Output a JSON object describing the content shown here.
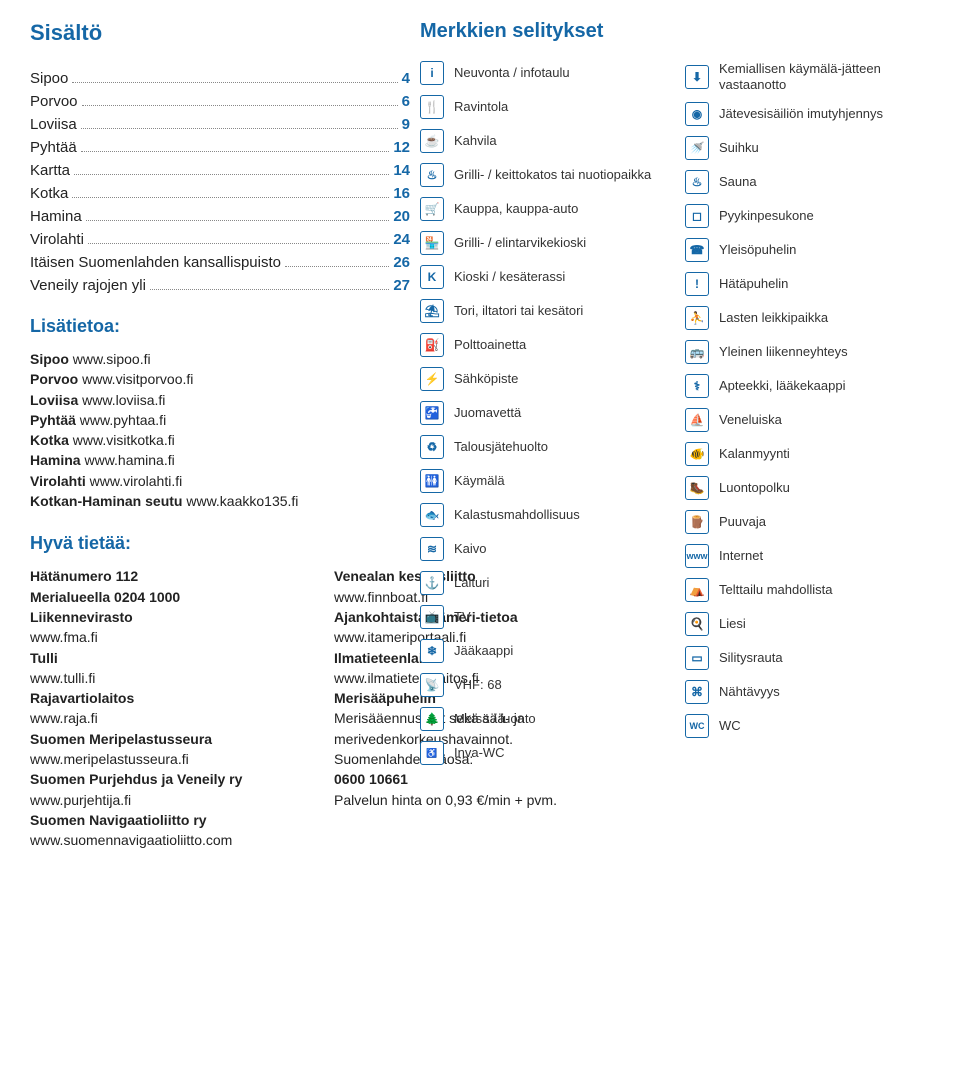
{
  "title": "Sisältö",
  "toc": [
    {
      "label": "Sipoo",
      "page": "4"
    },
    {
      "label": "Porvoo",
      "page": "6"
    },
    {
      "label": "Loviisa",
      "page": "9"
    },
    {
      "label": "Pyhtää",
      "page": "12"
    },
    {
      "label": "Kartta",
      "page": "14"
    },
    {
      "label": "Kotka",
      "page": "16"
    },
    {
      "label": "Hamina",
      "page": "20"
    },
    {
      "label": "Virolahti",
      "page": "24"
    },
    {
      "label": "Itäisen Suomenlahden kansallispuisto",
      "page": "26"
    },
    {
      "label": "Veneily rajojen yli",
      "page": "27"
    }
  ],
  "moreinfo_h": "Lisätietoa:",
  "moreinfo": [
    {
      "b": "Sipoo",
      "t": " www.sipoo.fi"
    },
    {
      "b": "Porvoo",
      "t": " www.visitporvoo.fi"
    },
    {
      "b": "Loviisa",
      "t": " www.loviisa.fi"
    },
    {
      "b": "Pyhtää",
      "t": " www.pyhtaa.fi"
    },
    {
      "b": "Kotka",
      "t": " www.visitkotka.fi"
    },
    {
      "b": "Hamina",
      "t": " www.hamina.fi"
    },
    {
      "b": "Virolahti",
      "t": " www.virolahti.fi"
    },
    {
      "b": "Kotkan-Haminan seutu",
      "t": " www.kaakko135.fi"
    }
  ],
  "good_h": "Hyvä tietää:",
  "good_left": "Hätänumero 112\nMerialueella 0204 1000\nLiikennevirasto\nwww.fma.fi\nTulli\nwww.tulli.fi\nRajavartiolaitos\nwww.raja.fi\nSuomen Meripelastusseura\nwww.meripelastusseura.fi\nSuomen Purjehdus ja Veneily ry\nwww.purjehtija.fi\nSuomen Navigaatioliitto ry\nwww.suomennavigaatioliitto.com",
  "good_right": "Venealan keskusliitto\nwww.finnboat.fi\nAjankohtaista Itämeri-tietoa\nwww.itameriportaali.fi\nIlmatieteenlaitos\nwww.ilmatieteenlaitos.fi\nMerisääpuhelin\nMerisääennusteet sekä sää- ja merivedenkorkeushavainnot.\nSuomenlahden itäosa:\n0600 10661\nPalvelun hinta on 0,93 €/min + pvm.",
  "good_left_bold": [
    "Hätänumero 112",
    "Merialueella 0204 1000",
    "Liikennevirasto",
    "Tulli",
    "Rajavartiolaitos",
    "Suomen Meripelastusseura",
    "Suomen Purjehdus ja Veneily ry",
    "Suomen Navigaatioliitto ry"
  ],
  "good_right_bold": [
    "Venealan keskusliitto",
    "Ajankohtaista Itämeri-tietoa",
    "Ilmatieteenlaitos",
    "Merisääpuhelin",
    "0600 10661"
  ],
  "legend_title": "Merkkien selitykset",
  "legend_left": [
    {
      "glyph": "i",
      "label": "Neuvonta / infotaulu"
    },
    {
      "glyph": "🍴",
      "label": "Ravintola"
    },
    {
      "glyph": "☕",
      "label": "Kahvila"
    },
    {
      "glyph": "♨",
      "label": "Grilli- / keittokatos tai nuotiopaikka"
    },
    {
      "glyph": "🛒",
      "label": "Kauppa, kauppa-auto"
    },
    {
      "glyph": "🏪",
      "label": "Grilli- / elintarvikekioski"
    },
    {
      "glyph": "K",
      "label": "Kioski / kesäterassi"
    },
    {
      "glyph": "⛱",
      "label": "Tori, iltatori tai kesätori"
    },
    {
      "glyph": "⛽",
      "label": "Polttoainetta"
    },
    {
      "glyph": "⚡",
      "label": "Sähköpiste"
    },
    {
      "glyph": "🚰",
      "label": "Juomavettä"
    },
    {
      "glyph": "♻",
      "label": "Talousjätehuolto"
    },
    {
      "glyph": "🚻",
      "label": "Käymälä"
    },
    {
      "glyph": "🐟",
      "label": "Kalastusmahdollisuus"
    },
    {
      "glyph": "≋",
      "label": "Kaivo"
    },
    {
      "glyph": "⚓",
      "label": "Laituri"
    },
    {
      "glyph": "📺",
      "label": "TV"
    },
    {
      "glyph": "❄",
      "label": "Jääkaappi"
    },
    {
      "glyph": "📡",
      "label": "VHF: 68"
    },
    {
      "glyph": "🌲",
      "label": "Metsä / luonto"
    },
    {
      "glyph": "♿",
      "label": "Inva-WC",
      "small": true
    }
  ],
  "legend_right": [
    {
      "glyph": "⬇",
      "label": "Kemiallisen käymälä-jätteen vastaanotto"
    },
    {
      "glyph": "◉",
      "label": "Jätevesisäiliön imutyhjennys"
    },
    {
      "glyph": "🚿",
      "label": "Suihku"
    },
    {
      "glyph": "♨",
      "label": "Sauna"
    },
    {
      "glyph": "◻",
      "label": "Pyykinpesukone"
    },
    {
      "glyph": "☎",
      "label": "Yleisöpuhelin"
    },
    {
      "glyph": "!",
      "label": "Hätäpuhelin"
    },
    {
      "glyph": "⛹",
      "label": "Lasten leikkipaikka"
    },
    {
      "glyph": "🚌",
      "label": "Yleinen liikenneyhteys"
    },
    {
      "glyph": "⚕",
      "label": "Apteekki, lääkekaappi"
    },
    {
      "glyph": "⛵",
      "label": "Veneluiska"
    },
    {
      "glyph": "🐠",
      "label": "Kalanmyynti"
    },
    {
      "glyph": "🥾",
      "label": "Luontopolku"
    },
    {
      "glyph": "🪵",
      "label": "Puuvaja"
    },
    {
      "glyph": "www",
      "label": "Internet",
      "small": true
    },
    {
      "glyph": "⛺",
      "label": "Telttailu mahdollista"
    },
    {
      "glyph": "🍳",
      "label": "Liesi"
    },
    {
      "glyph": "▭",
      "label": "Silitysrauta"
    },
    {
      "glyph": "⌘",
      "label": "Nähtävyys"
    },
    {
      "glyph": "WC",
      "label": "WC",
      "small": true
    }
  ],
  "colors": {
    "brand": "#1567a6",
    "text": "#222222"
  }
}
